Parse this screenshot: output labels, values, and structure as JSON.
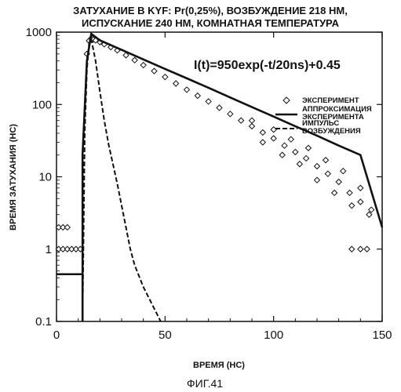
{
  "chart_data": {
    "type": "scatter",
    "title_lines": [
      "ЗАТУХАНИЕ В KYF: Pr(0,25%), ВОЗБУЖДЕНИЕ 218 НМ,",
      "ИСПУСКАНИЕ 240 НМ, КОМНАТНАЯ ТЕМПЕРАТУРА"
    ],
    "xlabel": "ВРЕМЯ (НС)",
    "ylabel": "ВРЕМЯ ЗАТУХАНИЯ (НС)",
    "xlim": [
      0,
      150
    ],
    "ylim": [
      0.1,
      1000
    ],
    "yscale": "log",
    "x_ticks": [
      0,
      50,
      100,
      150
    ],
    "x_tick_labels": [
      "0",
      "50",
      "100",
      "150"
    ],
    "y_ticks": [
      0.1,
      1,
      10,
      100,
      1000
    ],
    "y_tick_labels": [
      "0.1",
      "1",
      "10",
      "100",
      "1000"
    ],
    "annotation": "I(t)=950exp(-t/20ns)+0.45",
    "legend_position": "right",
    "legend": [
      {
        "label": "ЭКСПЕРИМЕНТ",
        "marker": "open-diamond"
      },
      {
        "label": "АППРОКСИМАЦИЯ ЭКСПЕРИМЕНТА",
        "label_lines": [
          "АППРОКСИМАЦИЯ",
          "ЭКСПЕРИМЕНТА"
        ],
        "marker": "solid-line"
      },
      {
        "label": "ИМПУЛЬС ВОЗБУЖДЕНИЯ",
        "label_lines": [
          "ИМПУЛЬС",
          "ВОЗБУЖДЕНИЯ"
        ],
        "marker": "dashed-line"
      }
    ],
    "series": [
      {
        "name": "ЭКСПЕРИМЕНТ",
        "style": "open-diamond",
        "points": [
          [
            1,
            2
          ],
          [
            3,
            2
          ],
          [
            5,
            2
          ],
          [
            1,
            1
          ],
          [
            3,
            1
          ],
          [
            5,
            1
          ],
          [
            7,
            1
          ],
          [
            9,
            1
          ],
          [
            11,
            1
          ],
          [
            14,
            500
          ],
          [
            15,
            760
          ],
          [
            16,
            820
          ],
          [
            17,
            790
          ],
          [
            18,
            770
          ],
          [
            20,
            730
          ],
          [
            22,
            680
          ],
          [
            25,
            620
          ],
          [
            28,
            560
          ],
          [
            32,
            480
          ],
          [
            36,
            410
          ],
          [
            40,
            350
          ],
          [
            45,
            290
          ],
          [
            50,
            240
          ],
          [
            55,
            195
          ],
          [
            60,
            160
          ],
          [
            65,
            132
          ],
          [
            70,
            110
          ],
          [
            75,
            90
          ],
          [
            80,
            74
          ],
          [
            85,
            60
          ],
          [
            90,
            50
          ],
          [
            95,
            41
          ],
          [
            100,
            34
          ],
          [
            105,
            27
          ],
          [
            110,
            22
          ],
          [
            115,
            18
          ],
          [
            120,
            14
          ],
          [
            125,
            11
          ],
          [
            130,
            8.5
          ],
          [
            135,
            6
          ],
          [
            140,
            4.5
          ],
          [
            145,
            3.5
          ],
          [
            90,
            60
          ],
          [
            95,
            30
          ],
          [
            100,
            45
          ],
          [
            104,
            20
          ],
          [
            108,
            33
          ],
          [
            112,
            15
          ],
          [
            116,
            25
          ],
          [
            120,
            9
          ],
          [
            124,
            17
          ],
          [
            128,
            6
          ],
          [
            132,
            12
          ],
          [
            136,
            4
          ],
          [
            140,
            7
          ],
          [
            144,
            3
          ],
          [
            136,
            1
          ],
          [
            140,
            1
          ],
          [
            143,
            1
          ]
        ]
      },
      {
        "name": "АППРОКСИМАЦИЯ ЭКСПЕРИМЕНТА",
        "style": "solid-line",
        "points": [
          [
            0,
            0.45
          ],
          [
            12,
            0.45
          ],
          [
            12,
            0.1
          ],
          [
            12,
            20
          ],
          [
            14,
            400
          ],
          [
            16,
            950
          ],
          [
            20,
            770
          ],
          [
            30,
            570
          ],
          [
            40,
            420
          ],
          [
            50,
            310
          ],
          [
            60,
            230
          ],
          [
            70,
            170
          ],
          [
            80,
            125
          ],
          [
            90,
            92
          ],
          [
            100,
            68
          ],
          [
            110,
            50
          ],
          [
            120,
            37
          ],
          [
            130,
            27
          ],
          [
            140,
            20
          ],
          [
            150,
            2
          ]
        ]
      },
      {
        "name": "ИМПУЛЬС ВОЗБУЖДЕНИЯ",
        "style": "dashed-line",
        "points": [
          [
            12,
            0.1
          ],
          [
            13,
            40
          ],
          [
            14,
            300
          ],
          [
            15,
            700
          ],
          [
            16,
            800
          ],
          [
            18,
            400
          ],
          [
            20,
            150
          ],
          [
            22,
            60
          ],
          [
            24,
            28
          ],
          [
            26,
            15
          ],
          [
            28,
            8
          ],
          [
            30,
            4
          ],
          [
            32,
            2
          ],
          [
            34,
            1
          ],
          [
            36,
            0.6
          ],
          [
            40,
            0.3
          ],
          [
            48,
            0.1
          ]
        ]
      }
    ]
  },
  "caption": "ФИГ.41"
}
